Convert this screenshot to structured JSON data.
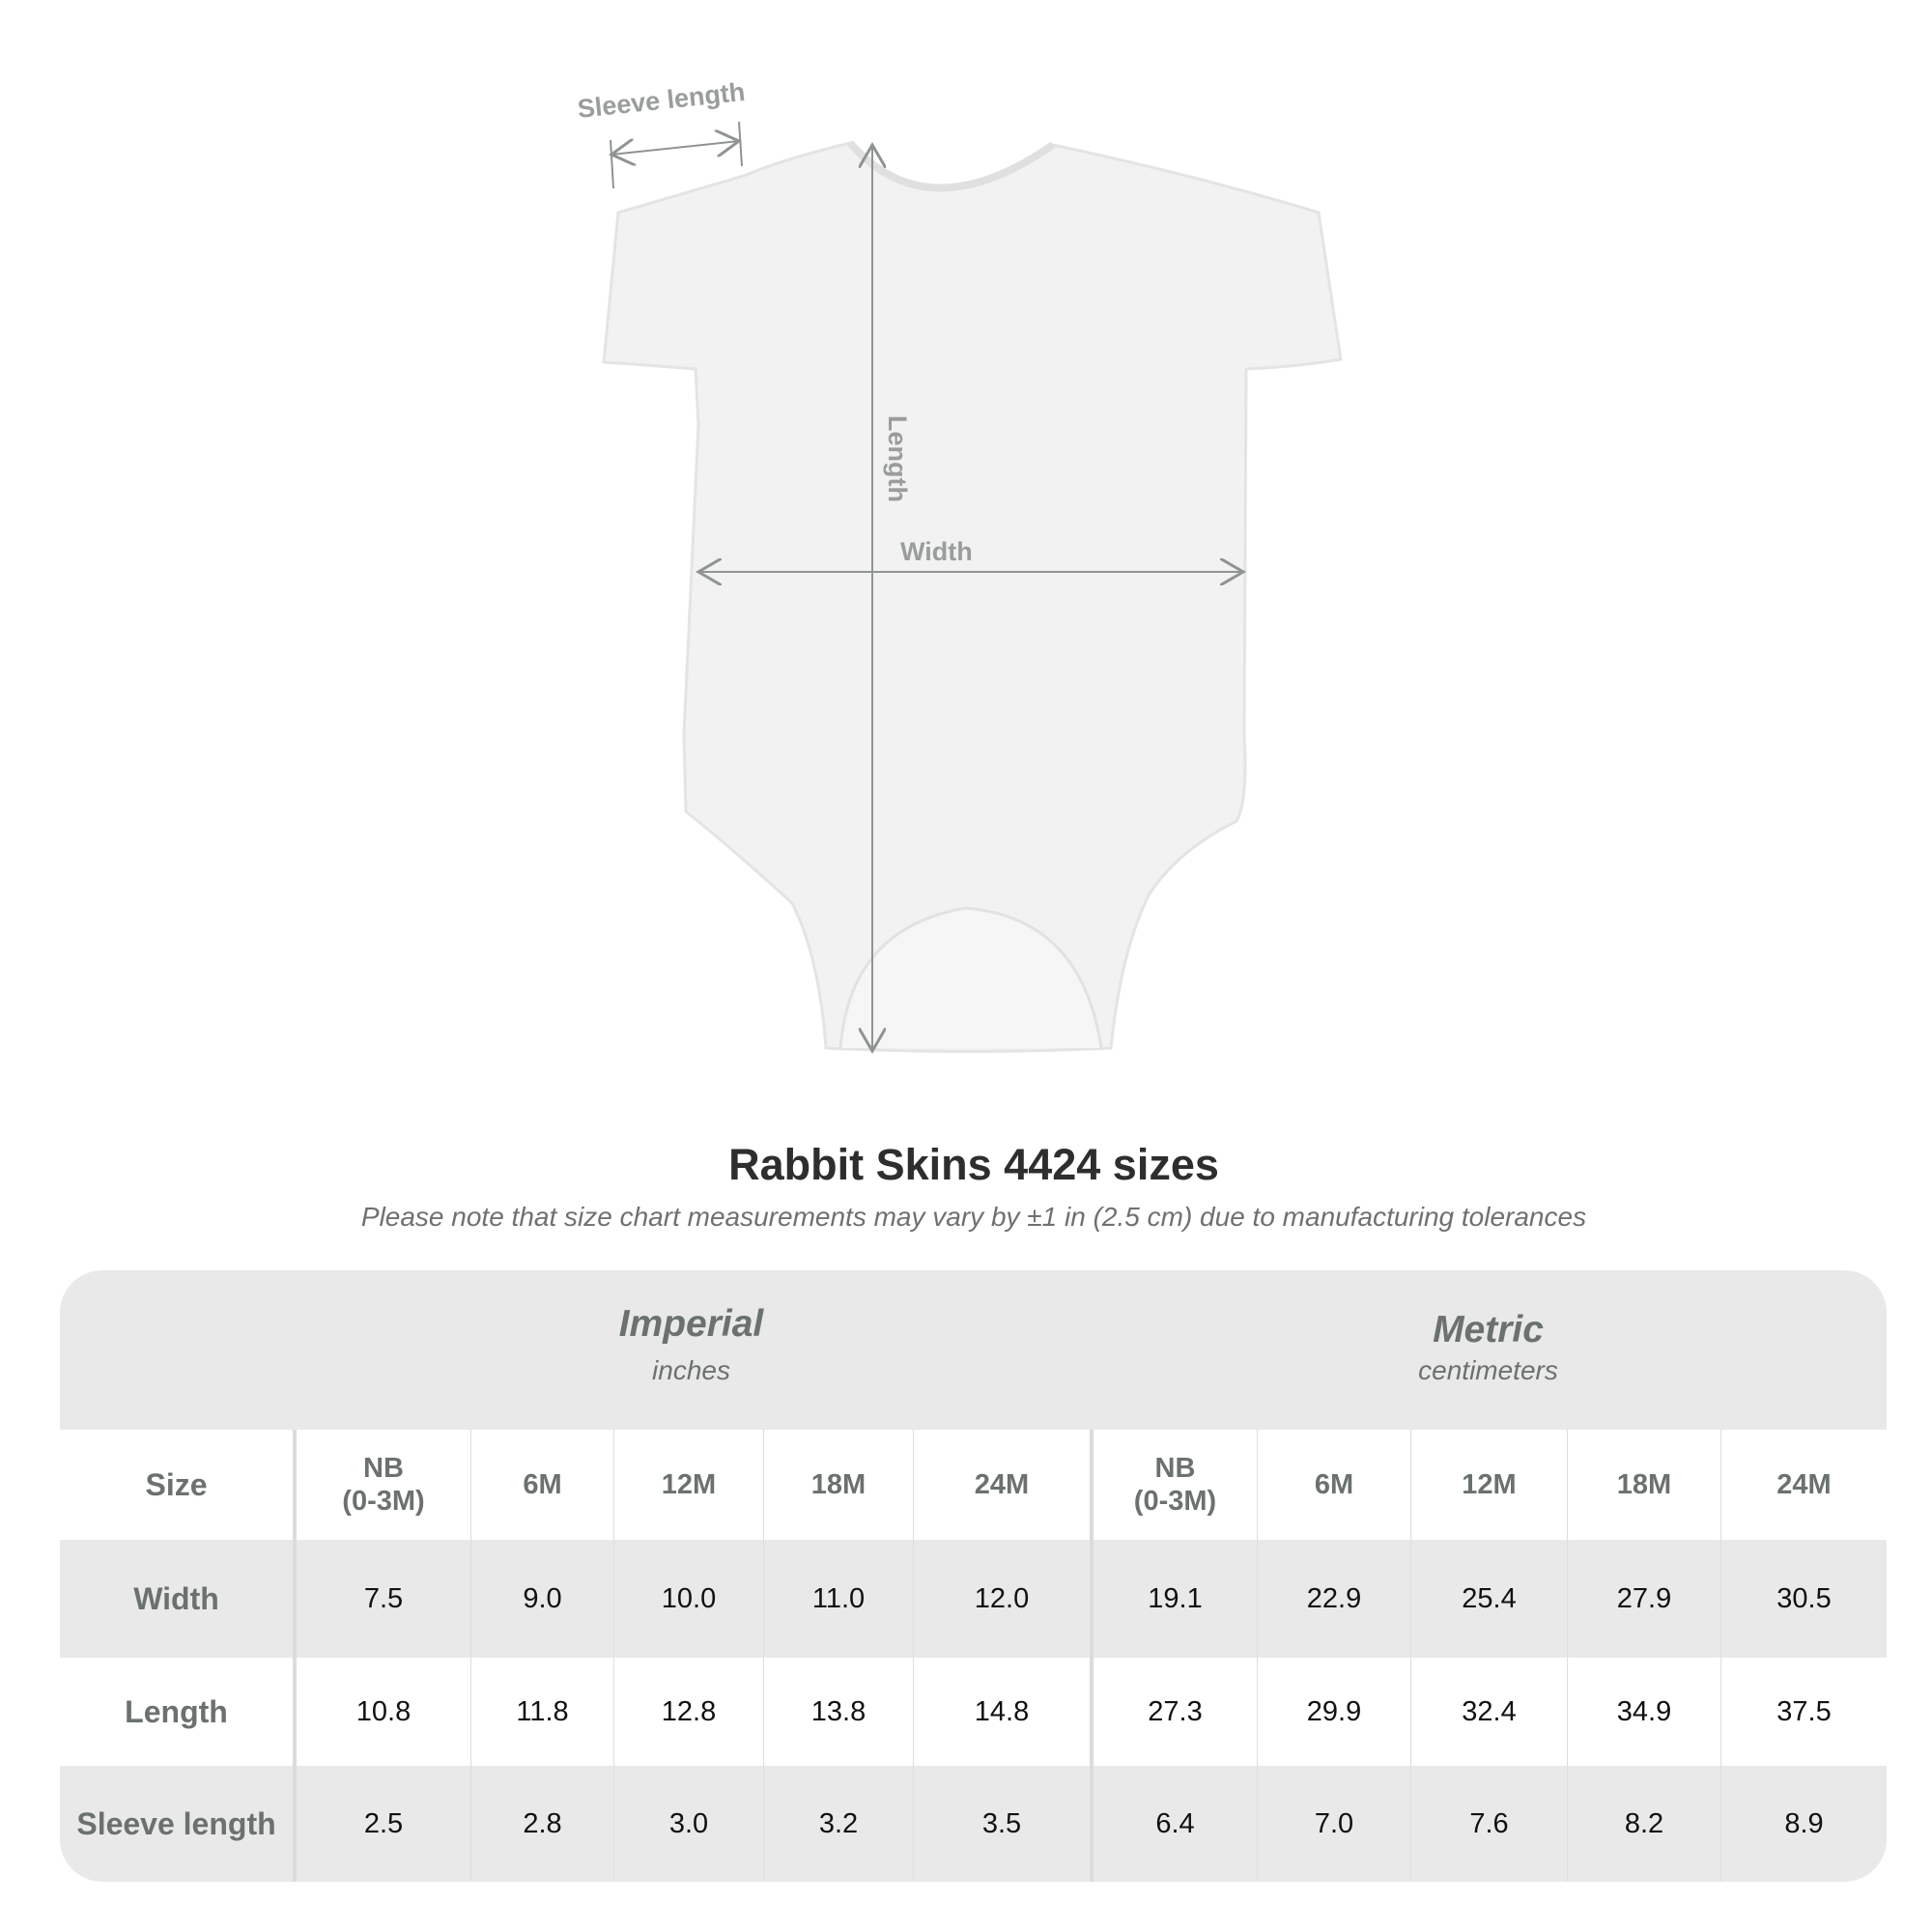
{
  "diagram": {
    "labels": {
      "sleeve": "Sleeve length",
      "length": "Length",
      "width": "Width"
    }
  },
  "title": "Rabbit Skins 4424 sizes",
  "note": "Please note that size chart measurements may vary by ±1 in (2.5 cm) due to manufacturing tolerances",
  "table": {
    "imperial": {
      "name": "Imperial",
      "unit": "inches"
    },
    "metric": {
      "name": "Metric",
      "unit": "centimeters"
    },
    "size_label": "Size",
    "sizes": [
      "NB\n(0-3M)",
      "6M",
      "12M",
      "18M",
      "24M",
      "NB\n(0-3M)",
      "6M",
      "12M",
      "18M",
      "24M"
    ],
    "rows": [
      {
        "label": "Width",
        "values": [
          "7.5",
          "9.0",
          "10.0",
          "11.0",
          "12.0",
          "19.1",
          "22.9",
          "25.4",
          "27.9",
          "30.5"
        ]
      },
      {
        "label": "Length",
        "values": [
          "10.8",
          "11.8",
          "12.8",
          "13.8",
          "14.8",
          "27.3",
          "29.9",
          "32.4",
          "34.9",
          "37.5"
        ]
      },
      {
        "label": "Sleeve length",
        "values": [
          "2.5",
          "2.8",
          "3.0",
          "3.2",
          "3.5",
          "6.4",
          "7.0",
          "7.6",
          "8.2",
          "8.9"
        ]
      }
    ]
  }
}
